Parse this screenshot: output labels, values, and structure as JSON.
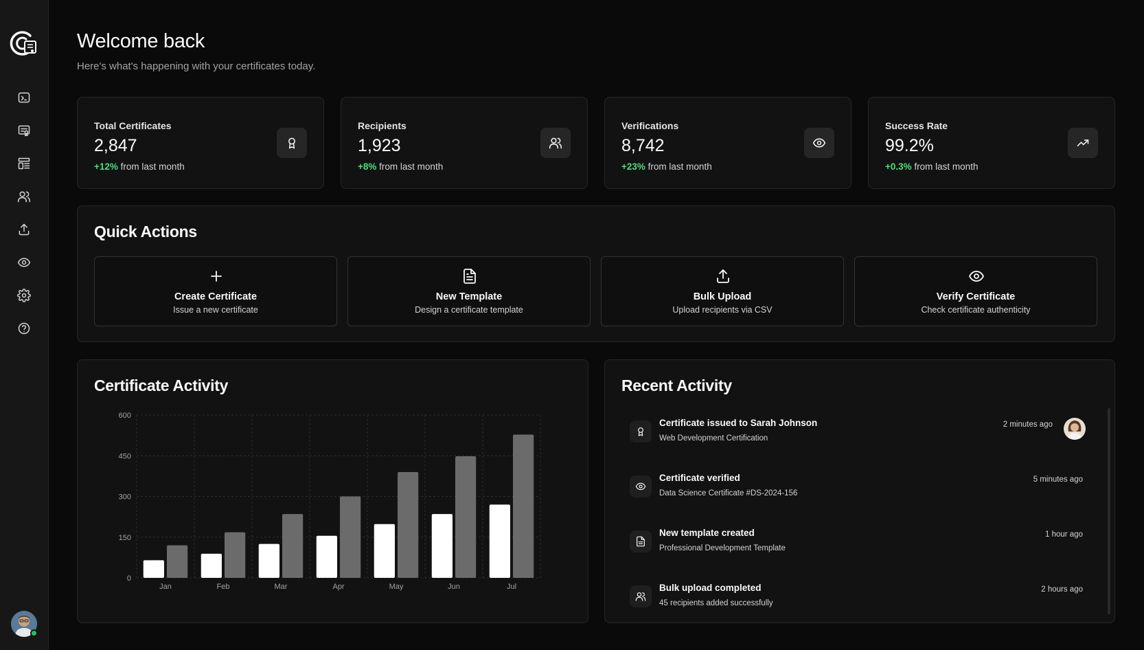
{
  "header": {
    "title": "Welcome back",
    "subtitle": "Here's what's happening with your certificates today."
  },
  "sidebar": {
    "items": [
      {
        "icon": "terminal-icon"
      },
      {
        "icon": "certificate-icon"
      },
      {
        "icon": "templates-icon"
      },
      {
        "icon": "users-icon"
      },
      {
        "icon": "upload-icon"
      },
      {
        "icon": "eye-icon"
      },
      {
        "icon": "gear-icon"
      },
      {
        "icon": "help-icon"
      }
    ]
  },
  "stats": [
    {
      "label": "Total Certificates",
      "value": "2,847",
      "change": "+12%",
      "change_suffix": "from last month",
      "icon": "award-icon"
    },
    {
      "label": "Recipients",
      "value": "1,923",
      "change": "+8%",
      "change_suffix": "from last month",
      "icon": "users-icon"
    },
    {
      "label": "Verifications",
      "value": "8,742",
      "change": "+23%",
      "change_suffix": "from last month",
      "icon": "eye-icon"
    },
    {
      "label": "Success Rate",
      "value": "99.2%",
      "change": "+0.3%",
      "change_suffix": "from last month",
      "icon": "trending-up-icon"
    }
  ],
  "quick_actions": {
    "title": "Quick Actions",
    "items": [
      {
        "title": "Create Certificate",
        "description": "Issue a new certificate",
        "icon": "plus-icon"
      },
      {
        "title": "New Template",
        "description": "Design a certificate template",
        "icon": "file-text-icon"
      },
      {
        "title": "Bulk Upload",
        "description": "Upload recipients via CSV",
        "icon": "upload-icon"
      },
      {
        "title": "Verify Certificate",
        "description": "Check certificate authenticity",
        "icon": "eye-icon"
      }
    ]
  },
  "certificate_activity": {
    "title": "Certificate Activity"
  },
  "chart_data": {
    "type": "bar",
    "title": "Certificate Activity",
    "categories": [
      "Jan",
      "Feb",
      "Mar",
      "Apr",
      "May",
      "Jun",
      "Jul"
    ],
    "series": [
      {
        "values": [
          65,
          89,
          125,
          155,
          198,
          235,
          270
        ],
        "color": "#ffffff"
      },
      {
        "values": [
          120,
          168,
          235,
          300,
          390,
          448,
          528
        ],
        "color": "#6b6b6b"
      }
    ],
    "yticks": [
      "0",
      "150",
      "300",
      "450",
      "600"
    ],
    "ylim": [
      0,
      600
    ],
    "grid": true
  },
  "recent_activity": {
    "title": "Recent Activity",
    "items": [
      {
        "title": "Certificate issued to Sarah Johnson",
        "subtitle": "Web Development Certification",
        "time": "2 minutes ago",
        "icon": "award-icon"
      },
      {
        "title": "Certificate verified",
        "subtitle": "Data Science Certificate #DS-2024-156",
        "time": "5 minutes ago",
        "icon": "eye-icon"
      },
      {
        "title": "New template created",
        "subtitle": "Professional Development Template",
        "time": "1 hour ago",
        "icon": "file-text-icon"
      },
      {
        "title": "Bulk upload completed",
        "subtitle": "45 recipients added successfully",
        "time": "2 hours ago",
        "icon": "users-icon"
      }
    ]
  }
}
